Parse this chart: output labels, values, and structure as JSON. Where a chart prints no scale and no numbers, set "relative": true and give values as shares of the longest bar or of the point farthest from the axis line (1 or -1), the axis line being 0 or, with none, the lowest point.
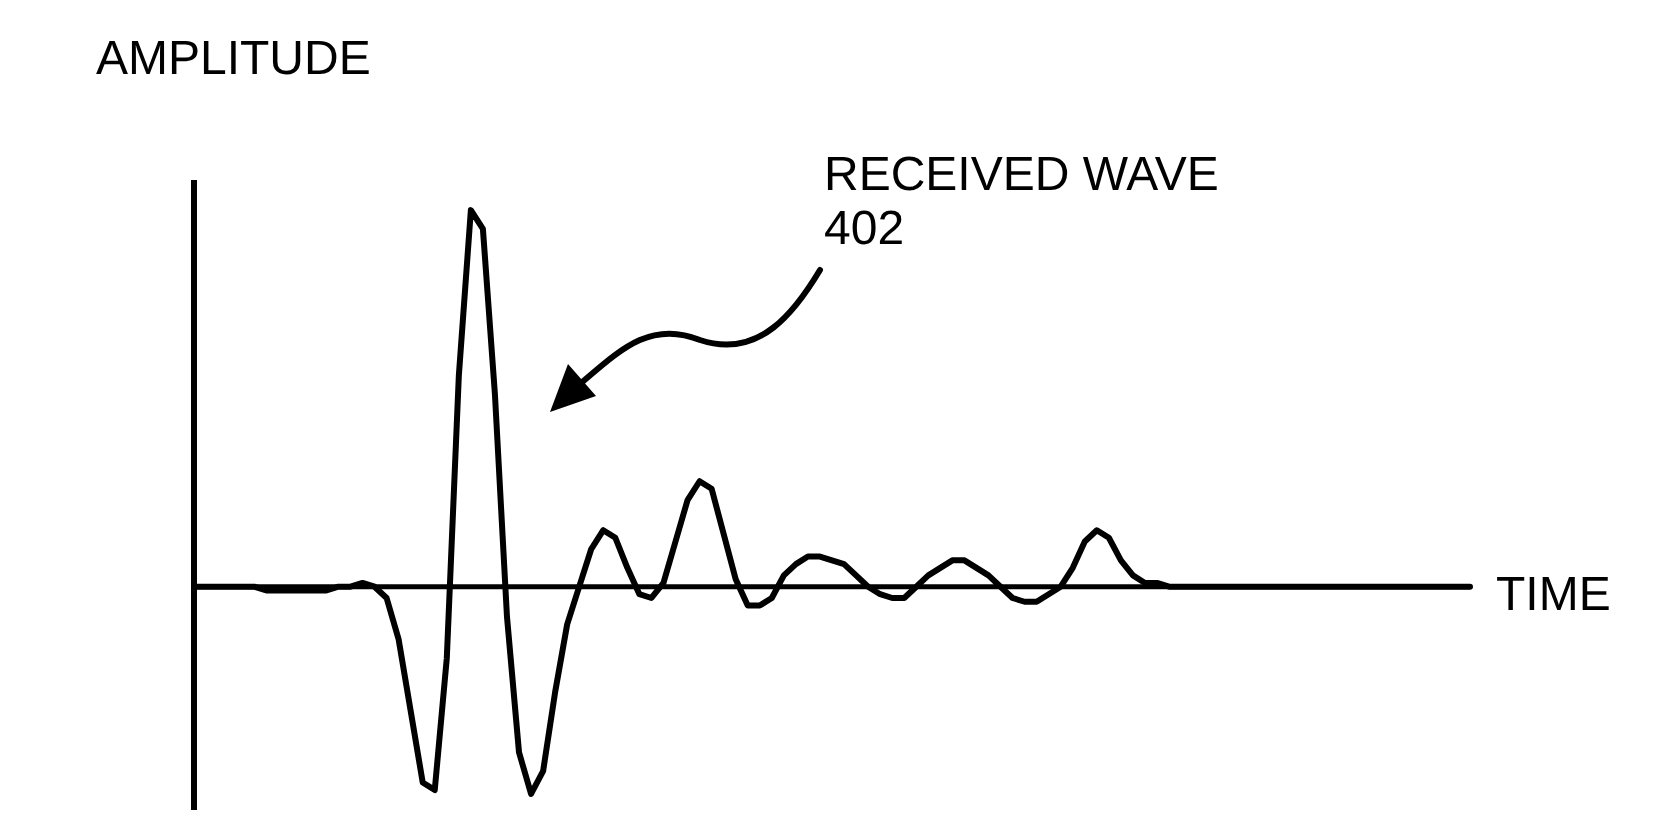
{
  "chart_data": {
    "type": "line",
    "relative": true,
    "xlabel": "TIME",
    "ylabel": "AMPLITUDE",
    "annotations": [
      "RECEIVED WAVE 402"
    ],
    "categories": [
      null,
      null,
      null,
      null,
      null,
      null,
      null,
      null,
      null,
      null,
      null,
      null,
      null,
      null,
      null,
      null,
      null,
      null,
      null,
      null,
      null,
      null,
      null,
      null,
      null,
      null,
      null,
      null,
      null,
      null,
      null,
      null,
      null,
      null,
      null,
      null,
      null,
      null,
      null,
      null,
      null,
      null,
      null,
      null,
      null,
      null,
      null,
      null,
      null,
      null,
      null,
      null,
      null,
      null,
      null,
      null,
      null,
      null,
      null,
      null,
      null,
      null,
      null,
      null,
      null,
      null,
      null,
      null,
      null,
      null,
      null,
      null,
      null,
      null,
      null,
      null,
      null,
      null,
      null,
      null,
      null,
      null,
      null,
      null,
      null,
      null,
      null,
      null,
      null,
      null,
      null,
      null,
      null,
      null,
      null,
      null,
      null,
      null,
      null,
      null,
      null,
      null,
      null,
      null,
      null,
      null,
      null
    ],
    "series": [
      {
        "color": "#000000",
        "values": [
          0,
          0,
          0,
          0,
          0,
          0,
          -0.01,
          -0.01,
          -0.01,
          -0.01,
          -0.01,
          -0.01,
          0,
          0,
          0.01,
          0,
          -0.03,
          -0.14,
          -0.33,
          -0.52,
          -0.54,
          -0.19,
          0.56,
          1,
          0.95,
          0.51,
          -0.08,
          -0.44,
          -0.55,
          -0.49,
          -0.28,
          -0.1,
          0,
          0.1,
          0.15,
          0.13,
          0.05,
          -0.02,
          -0.03,
          0.01,
          0.12,
          0.23,
          0.28,
          0.26,
          0.14,
          0.02,
          -0.05,
          -0.05,
          -0.03,
          0.03,
          0.06,
          0.08,
          0.08,
          0.07,
          0.06,
          0.03,
          0,
          -0.02,
          -0.03,
          -0.03,
          0,
          0.03,
          0.05,
          0.07,
          0.07,
          0.05,
          0.03,
          0,
          -0.03,
          -0.04,
          -0.04,
          -0.02,
          0,
          0.05,
          0.12,
          0.15,
          0.13,
          0.07,
          0.03,
          0.01,
          0.01,
          0,
          0,
          0,
          0,
          0,
          0,
          0,
          0,
          0,
          0,
          0,
          0,
          0,
          0,
          0,
          0,
          0,
          0,
          0,
          0,
          0,
          0,
          0,
          0,
          0,
          0
        ]
      }
    ]
  }
}
